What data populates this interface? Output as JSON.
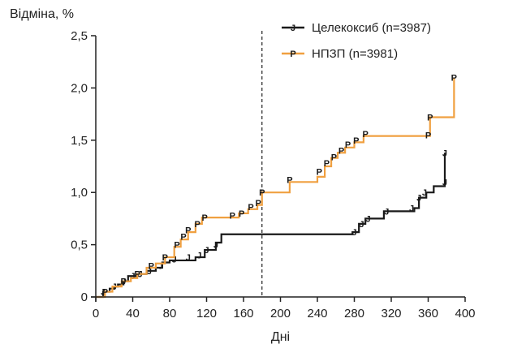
{
  "chart_data": {
    "type": "line",
    "title": "",
    "ylabel": "Відміна, %",
    "xlabel": "Дні",
    "xlim": [
      0,
      400
    ],
    "ylim": [
      0,
      2.5
    ],
    "xticks": [
      0,
      40,
      80,
      120,
      160,
      200,
      240,
      280,
      320,
      360,
      400
    ],
    "xtick_labels": [
      "0",
      "40",
      "80",
      "120",
      "160",
      "200",
      "240",
      "280",
      "320",
      "360",
      "400"
    ],
    "yticks": [
      0,
      0.5,
      1.0,
      1.5,
      2.0,
      2.5
    ],
    "ytick_labels": [
      "0",
      "0,5",
      "1,0",
      "1,5",
      "2,0",
      "2,5"
    ],
    "reference_line_x": 180,
    "legend_position": "top-right",
    "series": [
      {
        "name": "Целекоксиб (n=3987)",
        "color": "#1a1a1a",
        "marker": "J",
        "step_points": [
          [
            0,
            0.0
          ],
          [
            8,
            0.05
          ],
          [
            15,
            0.08
          ],
          [
            20,
            0.1
          ],
          [
            24,
            0.12
          ],
          [
            30,
            0.15
          ],
          [
            35,
            0.2
          ],
          [
            45,
            0.22
          ],
          [
            55,
            0.25
          ],
          [
            65,
            0.28
          ],
          [
            72,
            0.33
          ],
          [
            80,
            0.35
          ],
          [
            108,
            0.38
          ],
          [
            118,
            0.45
          ],
          [
            130,
            0.52
          ],
          [
            136,
            0.6
          ],
          [
            278,
            0.62
          ],
          [
            285,
            0.7
          ],
          [
            292,
            0.75
          ],
          [
            312,
            0.82
          ],
          [
            345,
            0.85
          ],
          [
            350,
            0.95
          ],
          [
            358,
            1.0
          ],
          [
            366,
            1.06
          ],
          [
            378,
            1.38
          ]
        ],
        "censor_marks": [
          [
            8,
            0.05
          ],
          [
            20,
            0.1
          ],
          [
            30,
            0.15
          ],
          [
            40,
            0.2
          ],
          [
            48,
            0.22
          ],
          [
            58,
            0.25
          ],
          [
            70,
            0.3
          ],
          [
            85,
            0.36
          ],
          [
            100,
            0.38
          ],
          [
            112,
            0.4
          ],
          [
            120,
            0.45
          ],
          [
            130,
            0.5
          ],
          [
            280,
            0.62
          ],
          [
            288,
            0.7
          ],
          [
            295,
            0.75
          ],
          [
            315,
            0.82
          ],
          [
            342,
            0.85
          ],
          [
            350,
            0.95
          ],
          [
            356,
            1.0
          ],
          [
            378,
            1.1
          ],
          [
            378,
            1.38
          ]
        ]
      },
      {
        "name": "НПЗП (n=3981)",
        "color": "#f0a040",
        "marker": "P",
        "step_points": [
          [
            0,
            0.0
          ],
          [
            10,
            0.05
          ],
          [
            18,
            0.1
          ],
          [
            28,
            0.15
          ],
          [
            38,
            0.18
          ],
          [
            45,
            0.22
          ],
          [
            55,
            0.28
          ],
          [
            65,
            0.32
          ],
          [
            75,
            0.38
          ],
          [
            85,
            0.48
          ],
          [
            92,
            0.55
          ],
          [
            100,
            0.62
          ],
          [
            108,
            0.7
          ],
          [
            115,
            0.76
          ],
          [
            155,
            0.8
          ],
          [
            165,
            0.84
          ],
          [
            175,
            0.88
          ],
          [
            180,
            1.0
          ],
          [
            210,
            1.1
          ],
          [
            240,
            1.15
          ],
          [
            248,
            1.25
          ],
          [
            255,
            1.33
          ],
          [
            262,
            1.38
          ],
          [
            270,
            1.43
          ],
          [
            280,
            1.48
          ],
          [
            290,
            1.54
          ],
          [
            362,
            1.72
          ],
          [
            388,
            2.1
          ]
        ],
        "censor_marks": [
          [
            10,
            0.05
          ],
          [
            30,
            0.15
          ],
          [
            45,
            0.22
          ],
          [
            60,
            0.3
          ],
          [
            75,
            0.38
          ],
          [
            88,
            0.5
          ],
          [
            95,
            0.58
          ],
          [
            100,
            0.64
          ],
          [
            110,
            0.7
          ],
          [
            118,
            0.76
          ],
          [
            148,
            0.78
          ],
          [
            158,
            0.8
          ],
          [
            168,
            0.86
          ],
          [
            176,
            0.9
          ],
          [
            180,
            1.0
          ],
          [
            210,
            1.12
          ],
          [
            242,
            1.2
          ],
          [
            250,
            1.28
          ],
          [
            258,
            1.34
          ],
          [
            266,
            1.4
          ],
          [
            273,
            1.46
          ],
          [
            282,
            1.5
          ],
          [
            292,
            1.56
          ],
          [
            360,
            1.55
          ],
          [
            362,
            1.72
          ],
          [
            388,
            2.1
          ]
        ]
      }
    ]
  }
}
